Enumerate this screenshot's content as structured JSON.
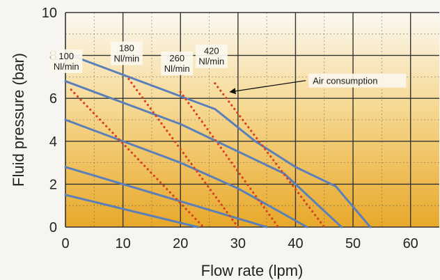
{
  "chart_data": {
    "type": "line",
    "xlabel": "Flow rate (lpm)",
    "ylabel": "Fluid pressure (bar)",
    "xlim": [
      0,
      65
    ],
    "ylim": [
      0,
      10
    ],
    "x_ticks": [
      0,
      10,
      20,
      30,
      40,
      50,
      60
    ],
    "y_ticks": [
      0,
      2,
      4,
      6,
      8,
      10
    ],
    "grid": true,
    "colors": {
      "pressure_curve": "#5b7fb8",
      "air_consumption": "#d8401f",
      "background_top": "#fbf8f0",
      "background_bottom": "#e8a82a"
    },
    "pressure_curves": [
      {
        "points": [
          [
            0,
            8.1
          ],
          [
            26,
            5.5
          ],
          [
            33,
            4.0
          ],
          [
            40,
            2.8
          ],
          [
            47,
            1.9
          ],
          [
            53,
            0
          ]
        ]
      },
      {
        "points": [
          [
            0,
            6.8
          ],
          [
            20,
            4.8
          ],
          [
            38,
            2.5
          ],
          [
            48,
            0
          ]
        ]
      },
      {
        "points": [
          [
            0,
            5.0
          ],
          [
            20,
            3.0
          ],
          [
            30,
            1.8
          ],
          [
            42,
            0
          ]
        ]
      },
      {
        "points": [
          [
            0,
            2.8
          ],
          [
            35,
            0
          ]
        ]
      },
      {
        "points": [
          [
            0,
            1.5
          ],
          [
            23,
            0
          ]
        ]
      }
    ],
    "air_consumption_curves": [
      {
        "label": [
          "100",
          "Nl/min"
        ],
        "points": [
          [
            1,
            6.4
          ],
          [
            24,
            0
          ]
        ]
      },
      {
        "label": [
          "180",
          "Nl/min"
        ],
        "points": [
          [
            11,
            6.9
          ],
          [
            30,
            0
          ]
        ]
      },
      {
        "label": [
          "260",
          "Nl/min"
        ],
        "points": [
          [
            20,
            6.3
          ],
          [
            37,
            0
          ]
        ]
      },
      {
        "label": [
          "420",
          "Nl/min"
        ],
        "points": [
          [
            26,
            6.7
          ],
          [
            45,
            0
          ]
        ]
      }
    ],
    "annotation": {
      "text": "Air consumption",
      "x": 43,
      "y": 6.7,
      "arrow_to": [
        28.6,
        6.3
      ]
    }
  }
}
